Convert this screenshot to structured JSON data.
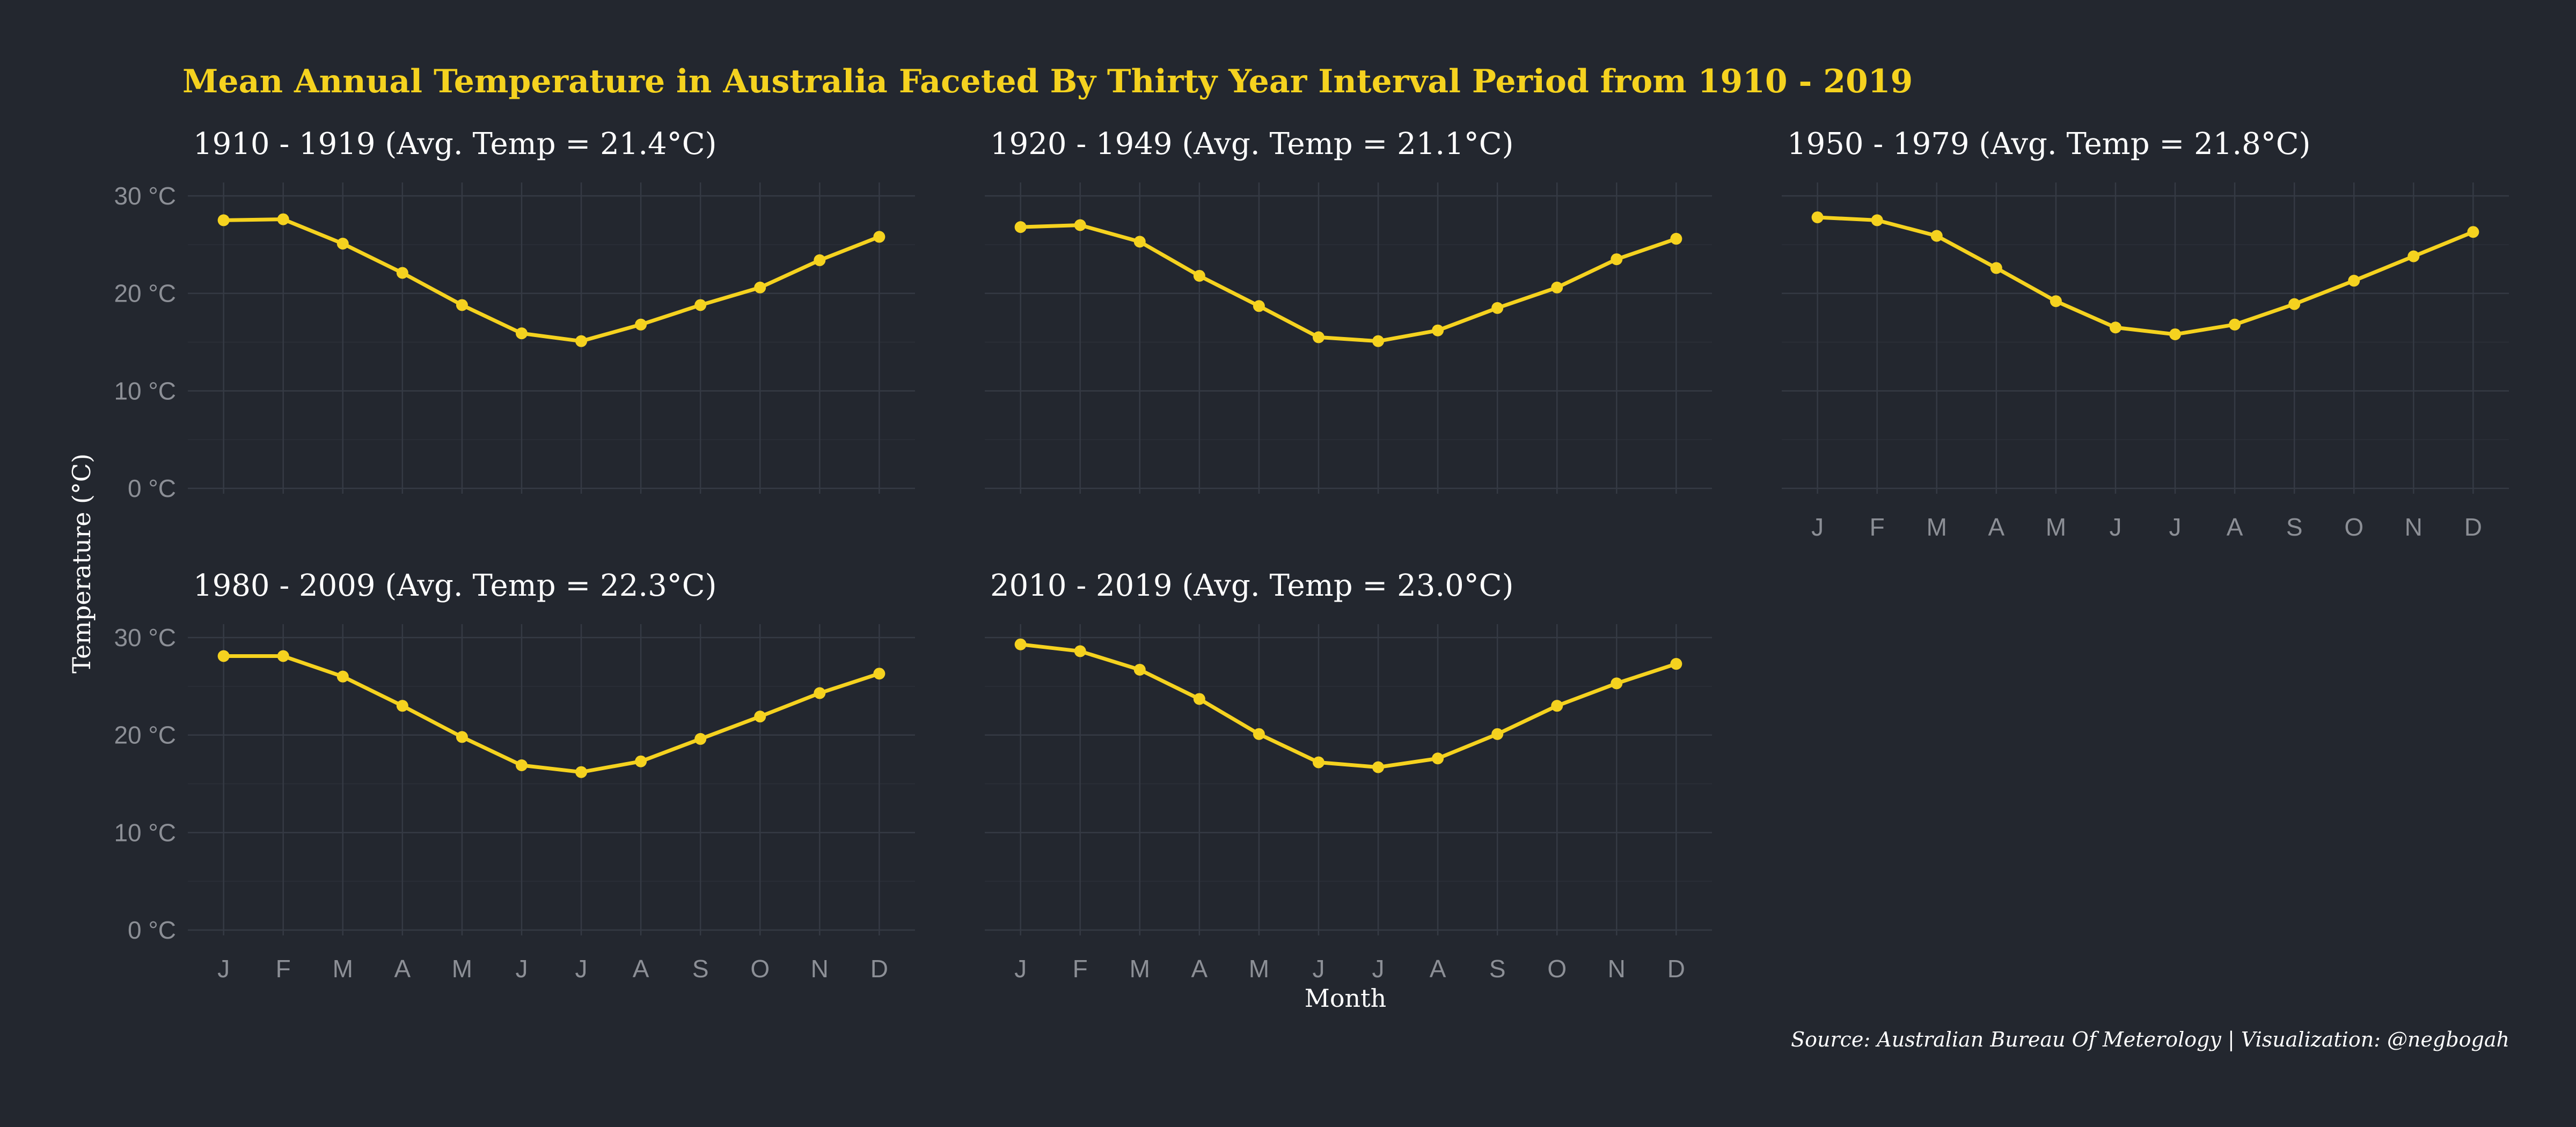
{
  "title": "Mean Annual Temperature in Australia Faceted By Thirty Year Interval Period from 1910 - 2019",
  "ylabel": "Temperature (°C)",
  "xlabel": "Month",
  "caption": "Source: Australian Bureau Of Meterology | Visualization: @negbogah",
  "colors": {
    "background": "#23272f",
    "line": "#f5d21f",
    "title": "#f5d21f",
    "text": "#ffffff",
    "tick": "#8c8f96"
  },
  "chart_data": [
    {
      "type": "line",
      "title": "1910 - 1919 (Avg. Temp = 21.4°C)",
      "categories": [
        "J",
        "F",
        "M",
        "A",
        "M",
        "J",
        "J",
        "A",
        "S",
        "O",
        "N",
        "D"
      ],
      "values": [
        27.5,
        27.6,
        25.1,
        22.1,
        18.8,
        15.9,
        15.1,
        16.8,
        18.8,
        20.6,
        23.4,
        25.8
      ],
      "ylim": [
        0,
        30
      ],
      "yticks": [
        "0 °C",
        "10 °C",
        "20 °C",
        "30 °C"
      ],
      "show_x_ticks": false,
      "show_y_ticks": true
    },
    {
      "type": "line",
      "title": "1920 - 1949 (Avg. Temp = 21.1°C)",
      "categories": [
        "J",
        "F",
        "M",
        "A",
        "M",
        "J",
        "J",
        "A",
        "S",
        "O",
        "N",
        "D"
      ],
      "values": [
        26.8,
        27.0,
        25.3,
        21.8,
        18.7,
        15.5,
        15.1,
        16.2,
        18.5,
        20.6,
        23.5,
        25.6
      ],
      "ylim": [
        0,
        30
      ],
      "yticks": [
        "0 °C",
        "10 °C",
        "20 °C",
        "30 °C"
      ],
      "show_x_ticks": false,
      "show_y_ticks": false
    },
    {
      "type": "line",
      "title": "1950 - 1979 (Avg. Temp = 21.8°C)",
      "categories": [
        "J",
        "F",
        "M",
        "A",
        "M",
        "J",
        "J",
        "A",
        "S",
        "O",
        "N",
        "D"
      ],
      "values": [
        27.8,
        27.5,
        25.9,
        22.6,
        19.2,
        16.5,
        15.8,
        16.8,
        18.9,
        21.3,
        23.8,
        26.3
      ],
      "ylim": [
        0,
        30
      ],
      "yticks": [
        "0 °C",
        "10 °C",
        "20 °C",
        "30 °C"
      ],
      "show_x_ticks": true,
      "show_y_ticks": false
    },
    {
      "type": "line",
      "title": "1980 - 2009 (Avg. Temp = 22.3°C)",
      "categories": [
        "J",
        "F",
        "M",
        "A",
        "M",
        "J",
        "J",
        "A",
        "S",
        "O",
        "N",
        "D"
      ],
      "values": [
        28.1,
        28.1,
        26.0,
        23.0,
        19.8,
        16.9,
        16.2,
        17.3,
        19.6,
        21.9,
        24.3,
        26.3
      ],
      "ylim": [
        0,
        30
      ],
      "yticks": [
        "0 °C",
        "10 °C",
        "20 °C",
        "30 °C"
      ],
      "show_x_ticks": true,
      "show_y_ticks": true
    },
    {
      "type": "line",
      "title": "2010 - 2019 (Avg. Temp = 23.0°C)",
      "categories": [
        "J",
        "F",
        "M",
        "A",
        "M",
        "J",
        "J",
        "A",
        "S",
        "O",
        "N",
        "D"
      ],
      "values": [
        29.3,
        28.6,
        26.7,
        23.7,
        20.1,
        17.2,
        16.7,
        17.6,
        20.1,
        23.0,
        25.3,
        27.3
      ],
      "ylim": [
        0,
        30
      ],
      "yticks": [
        "0 °C",
        "10 °C",
        "20 °C",
        "30 °C"
      ],
      "show_x_ticks": true,
      "show_y_ticks": false
    }
  ]
}
